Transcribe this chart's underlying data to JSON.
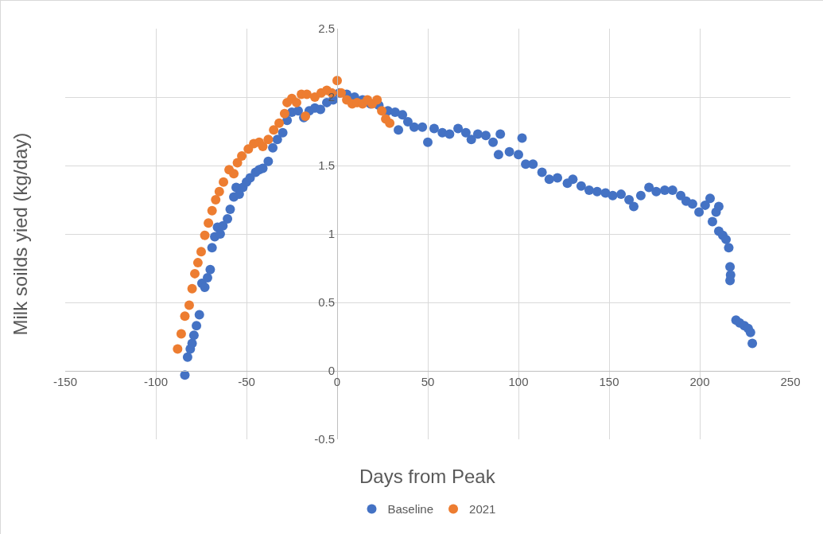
{
  "chart_data": {
    "type": "scatter",
    "xlabel": "Days from Peak",
    "ylabel": "Milk soilds yied (kg/day)",
    "xlim": [
      -150,
      250
    ],
    "xticks": [
      -150,
      -100,
      -50,
      0,
      50,
      100,
      150,
      200,
      250
    ],
    "ylim": [
      -0.5,
      2.5
    ],
    "yticks": [
      -0.5,
      0,
      0.5,
      1,
      1.5,
      2,
      2.5
    ],
    "grid": true,
    "legend": "bottom",
    "marker": "circle",
    "series": [
      {
        "name": "Baseline",
        "color": "#4472c4",
        "x": [
          -84,
          -82.5,
          -81,
          -80,
          -79,
          -77.6,
          -76,
          -74.6,
          -73,
          -71.5,
          -70,
          -69,
          -67.5,
          -66,
          -64.5,
          -63,
          -60.5,
          -59,
          -57,
          -55.7,
          -54,
          -52,
          -50,
          -48,
          -45,
          -43,
          -41,
          -38,
          -35.5,
          -33,
          -30,
          -27.6,
          -25,
          -21.5,
          -18.4,
          -15.4,
          -12.3,
          -9.2,
          -5.7,
          -2.2,
          1.3,
          5.3,
          9.6,
          14,
          18.4,
          23,
          28,
          32,
          33.8,
          36,
          39,
          42.5,
          47,
          50,
          53.5,
          58,
          62,
          66.7,
          71,
          74,
          77.6,
          82,
          86,
          89,
          90,
          95,
          100,
          102,
          104,
          108,
          113,
          117,
          121.5,
          127,
          130,
          134.6,
          139,
          143.4,
          148,
          152,
          156.6,
          161,
          163.6,
          167.5,
          172,
          176,
          180.7,
          185,
          189.5,
          192.5,
          196,
          199.6,
          203,
          205.7,
          207,
          209,
          210.5,
          210.5,
          212.7,
          214.5,
          216,
          216.7,
          217,
          216.7,
          220,
          222,
          224.6,
          226.7,
          228,
          229
        ],
        "values": [
          -0.03,
          0.1,
          0.16,
          0.2,
          0.26,
          0.33,
          0.41,
          0.64,
          0.61,
          0.68,
          0.74,
          0.9,
          0.98,
          1.05,
          1.0,
          1.06,
          1.11,
          1.18,
          1.27,
          1.34,
          1.29,
          1.34,
          1.38,
          1.41,
          1.45,
          1.47,
          1.48,
          1.53,
          1.63,
          1.69,
          1.74,
          1.83,
          1.89,
          1.9,
          1.85,
          1.9,
          1.92,
          1.91,
          1.96,
          1.98,
          2.03,
          2.02,
          2.0,
          1.98,
          1.95,
          1.94,
          1.9,
          1.89,
          1.76,
          1.87,
          1.82,
          1.78,
          1.78,
          1.67,
          1.77,
          1.74,
          1.73,
          1.77,
          1.74,
          1.69,
          1.73,
          1.72,
          1.67,
          1.58,
          1.73,
          1.6,
          1.58,
          1.7,
          1.51,
          1.51,
          1.45,
          1.4,
          1.41,
          1.37,
          1.4,
          1.35,
          1.32,
          1.31,
          1.3,
          1.28,
          1.29,
          1.25,
          1.2,
          1.28,
          1.34,
          1.31,
          1.32,
          1.32,
          1.28,
          1.24,
          1.22,
          1.16,
          1.21,
          1.26,
          1.09,
          1.16,
          1.2,
          1.02,
          0.99,
          0.96,
          0.9,
          0.76,
          0.7,
          0.66,
          0.37,
          0.35,
          0.33,
          0.31,
          0.28,
          0.2
        ]
      },
      {
        "name": "2021",
        "color": "#ed7d31",
        "x": [
          -88,
          -86,
          -84,
          -81.6,
          -80,
          -78.5,
          -76.8,
          -75,
          -73,
          -71,
          -69,
          -67,
          -65,
          -62.7,
          -59.6,
          -57,
          -55,
          -52.6,
          -49,
          -46,
          -43,
          -41,
          -38,
          -35,
          -32,
          -29,
          -27.6,
          -25,
          -22.4,
          -19.7,
          -17.5,
          -16.7,
          -12.3,
          -8.8,
          -5.7,
          -3,
          0,
          2.2,
          5.3,
          8.3,
          11,
          14,
          16.7,
          19.3,
          22,
          24.6,
          26.8,
          29
        ],
        "values": [
          0.16,
          0.27,
          0.4,
          0.48,
          0.6,
          0.71,
          0.79,
          0.87,
          0.99,
          1.08,
          1.17,
          1.25,
          1.31,
          1.38,
          1.47,
          1.44,
          1.52,
          1.57,
          1.62,
          1.66,
          1.67,
          1.64,
          1.69,
          1.76,
          1.81,
          1.88,
          1.96,
          1.99,
          1.96,
          2.02,
          1.86,
          2.02,
          2.0,
          2.03,
          2.05,
          2.03,
          2.12,
          2.03,
          1.98,
          1.95,
          1.96,
          1.95,
          1.98,
          1.95,
          1.98,
          1.9,
          1.84,
          1.81
        ]
      }
    ]
  }
}
